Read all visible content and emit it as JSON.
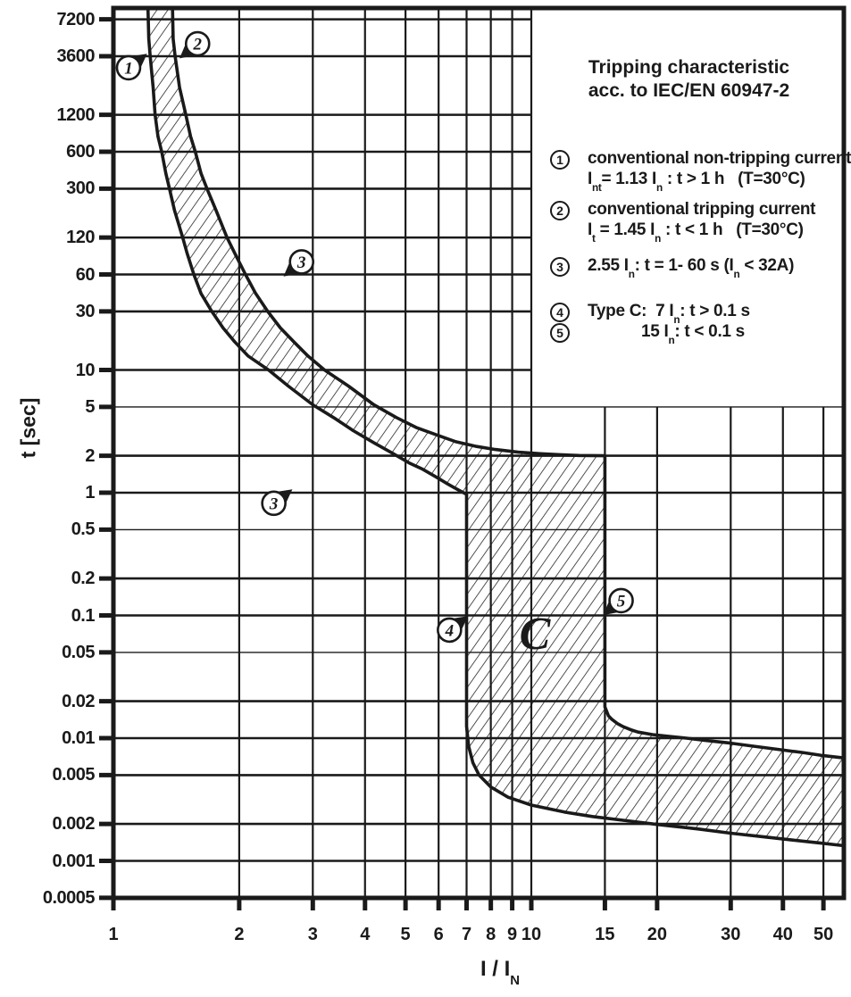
{
  "chart_data": {
    "type": "area",
    "title": "Tripping characteristic acc. to IEC/EN 60947-2",
    "xlabel": "I / I~N~",
    "ylabel": "t [sec]",
    "x_scale": "log",
    "y_scale": "log",
    "xlim": [
      1,
      56
    ],
    "ylim": [
      0.0005,
      8892
    ],
    "grid": true,
    "x_ticks": [
      1,
      2,
      3,
      4,
      5,
      6,
      7,
      8,
      9,
      10,
      15,
      20,
      30,
      40,
      50
    ],
    "y_ticks": [
      7200,
      3600,
      1200,
      600,
      300,
      120,
      60,
      30,
      10,
      5,
      2,
      1,
      0.5,
      0.2,
      0.1,
      0.05,
      0.02,
      0.01,
      0.005,
      0.002,
      0.001,
      0.0005
    ],
    "y_ticks_thin": [
      5,
      0.5,
      0.05
    ],
    "band": {
      "name": "tripping-tolerance-band-type-C",
      "fill": "diagonal-hatch",
      "outer_boundary": [
        [
          1.21,
          8892
        ],
        [
          1.215,
          5000
        ],
        [
          1.225,
          3600
        ],
        [
          1.245,
          2000
        ],
        [
          1.258,
          1200
        ],
        [
          1.278,
          800
        ],
        [
          1.305,
          600
        ],
        [
          1.335,
          400
        ],
        [
          1.362,
          300
        ],
        [
          1.4,
          200
        ],
        [
          1.465,
          120
        ],
        [
          1.5,
          90
        ],
        [
          1.558,
          60
        ],
        [
          1.62,
          42
        ],
        [
          1.72,
          30
        ],
        [
          1.83,
          22
        ],
        [
          1.95,
          17
        ],
        [
          2.1,
          13
        ],
        [
          2.35,
          10
        ],
        [
          2.62,
          7.4
        ],
        [
          3.0,
          5.2
        ],
        [
          3.4,
          4.0
        ],
        [
          3.75,
          3.2
        ],
        [
          4.2,
          2.55
        ],
        [
          4.65,
          2.1
        ],
        [
          5.1,
          1.75
        ],
        [
          5.5,
          1.55
        ],
        [
          5.9,
          1.35
        ],
        [
          6.3,
          1.18
        ],
        [
          6.7,
          1.05
        ],
        [
          7.0,
          0.97
        ],
        [
          7.0,
          0.0125
        ],
        [
          7.08,
          0.0086
        ],
        [
          7.25,
          0.0063
        ],
        [
          7.5,
          0.005
        ],
        [
          8.0,
          0.004
        ],
        [
          8.8,
          0.0033
        ],
        [
          10.0,
          0.00285
        ],
        [
          12.0,
          0.0025
        ],
        [
          14.0,
          0.0023
        ],
        [
          17.0,
          0.00212
        ],
        [
          20.0,
          0.00198
        ],
        [
          25.0,
          0.00182
        ],
        [
          30.0,
          0.00168
        ],
        [
          36.0,
          0.00157
        ],
        [
          42.0,
          0.00148
        ],
        [
          49.0,
          0.0014
        ],
        [
          56.0,
          0.00133
        ]
      ],
      "inner_boundary": [
        [
          1.385,
          8892
        ],
        [
          1.39,
          5000
        ],
        [
          1.405,
          3600
        ],
        [
          1.44,
          2000
        ],
        [
          1.49,
          1200
        ],
        [
          1.53,
          800
        ],
        [
          1.57,
          600
        ],
        [
          1.62,
          400
        ],
        [
          1.675,
          300
        ],
        [
          1.76,
          200
        ],
        [
          1.87,
          120
        ],
        [
          1.95,
          90
        ],
        [
          2.07,
          60
        ],
        [
          2.19,
          42
        ],
        [
          2.34,
          30
        ],
        [
          2.51,
          22
        ],
        [
          2.7,
          17
        ],
        [
          2.92,
          13
        ],
        [
          3.2,
          10
        ],
        [
          3.65,
          7.4
        ],
        [
          4.2,
          5.2
        ],
        [
          4.75,
          4.1
        ],
        [
          5.3,
          3.4
        ],
        [
          5.95,
          2.95
        ],
        [
          6.6,
          2.6
        ],
        [
          7.4,
          2.38
        ],
        [
          8.2,
          2.25
        ],
        [
          9.3,
          2.14
        ],
        [
          10.5,
          2.08
        ],
        [
          11.7,
          2.04
        ],
        [
          13.0,
          2.01
        ],
        [
          15.0,
          2.0
        ],
        [
          15.0,
          0.018
        ],
        [
          15.3,
          0.0152
        ],
        [
          15.6,
          0.0142
        ],
        [
          16.1,
          0.0131
        ],
        [
          16.6,
          0.0124
        ],
        [
          17.3,
          0.0117
        ],
        [
          18.0,
          0.0112
        ],
        [
          19.5,
          0.0107
        ],
        [
          21.0,
          0.0104
        ],
        [
          23.5,
          0.01
        ],
        [
          26.0,
          0.0096
        ],
        [
          30.0,
          0.0091
        ],
        [
          34.0,
          0.0086
        ],
        [
          39.0,
          0.0081
        ],
        [
          45.0,
          0.0076
        ],
        [
          50.0,
          0.0072
        ],
        [
          56.0,
          0.0069
        ]
      ]
    },
    "markers": [
      {
        "num": "1",
        "I": 1.087,
        "t": 2900,
        "pointer": "ne"
      },
      {
        "num": "2",
        "I": 1.59,
        "t": 4550,
        "pointer": "sw"
      },
      {
        "num": "3",
        "I": 2.82,
        "t": 76,
        "pointer": "sw"
      },
      {
        "num": "3",
        "I": 2.42,
        "t": 0.82,
        "pointer": "ne"
      },
      {
        "num": "4",
        "I": 6.37,
        "t": 0.076,
        "pointer": "ne"
      },
      {
        "num": "5",
        "I": 16.4,
        "t": 0.132,
        "pointer": "sw"
      }
    ],
    "region_label": {
      "text": "C",
      "I": 10.2,
      "t": 0.07
    },
    "legend": {
      "title_line1": "Tripping characteristic",
      "title_line2": "acc. to IEC/EN 60947-2",
      "items": [
        {
          "num": "1",
          "lines": [
            "conventional non-tripping current",
            "I~nt~= 1.13 I~n~ : t > 1 h   (T=30°C)"
          ],
          "top": 158
        },
        {
          "num": "2",
          "lines": [
            "conventional tripping current",
            "I~t~ = 1.45 I~n~ : t < 1 h   (T=30°C)"
          ],
          "top": 215
        },
        {
          "num": "3",
          "lines": [
            "2.55 I~n~: t = 1- 60 s (I~n~ < 32A)"
          ],
          "top": 278
        },
        {
          "num": "4",
          "lines": [
            "Type C:  7 I~n~: t > 0.1 s"
          ],
          "top": 329
        },
        {
          "num": "5",
          "lines": [
            "15 I~n~: t < 0.1 s"
          ],
          "top": 352,
          "indent": 60
        }
      ]
    },
    "colors": {
      "ink": "#1a1a1a",
      "background": "#ffffff"
    }
  }
}
